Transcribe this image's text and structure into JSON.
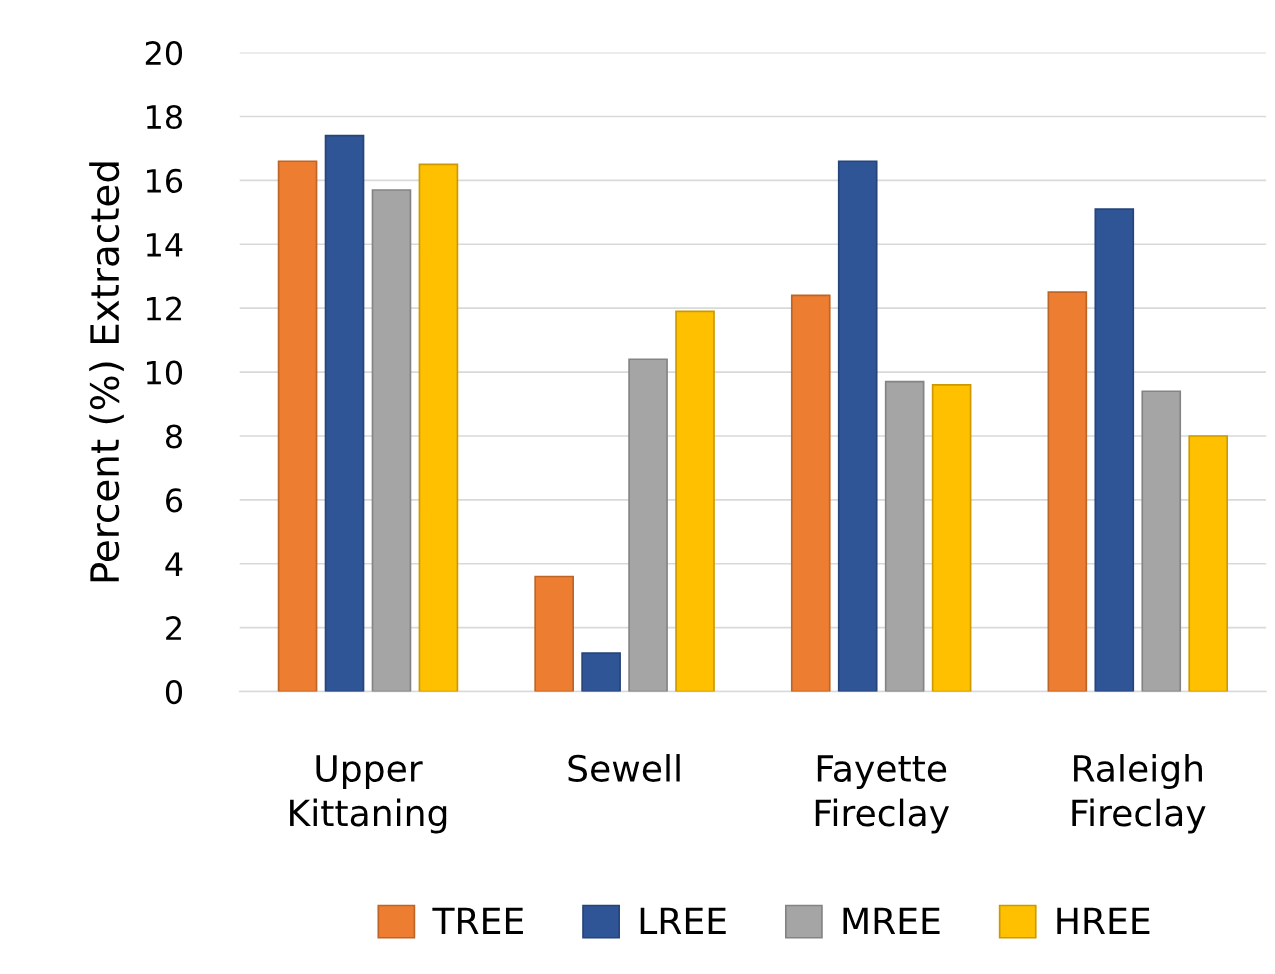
{
  "chart_data": {
    "type": "bar",
    "ylabel": "Percent (%) Extracted",
    "categories": [
      "Upper\nKittaning",
      "Sewell",
      "Fayette\nFireclay",
      "Raleigh\nFireclay"
    ],
    "series": [
      {
        "name": "TREE",
        "color": "#ed7d31",
        "values": [
          16.6,
          3.6,
          12.4,
          12.5
        ]
      },
      {
        "name": "LREE",
        "color": "#2f5597",
        "values": [
          17.4,
          1.2,
          16.6,
          15.1
        ]
      },
      {
        "name": "MREE",
        "color": "#a5a5a5",
        "values": [
          15.7,
          10.4,
          9.7,
          9.4
        ]
      },
      {
        "name": "HREE",
        "color": "#ffc000",
        "values": [
          16.5,
          11.9,
          9.6,
          8.0
        ]
      }
    ],
    "ylim": [
      0,
      20
    ],
    "yticks": [
      0,
      2,
      4,
      6,
      8,
      10,
      12,
      14,
      16,
      18,
      20
    ],
    "grid": "y",
    "legend": "bottom"
  }
}
